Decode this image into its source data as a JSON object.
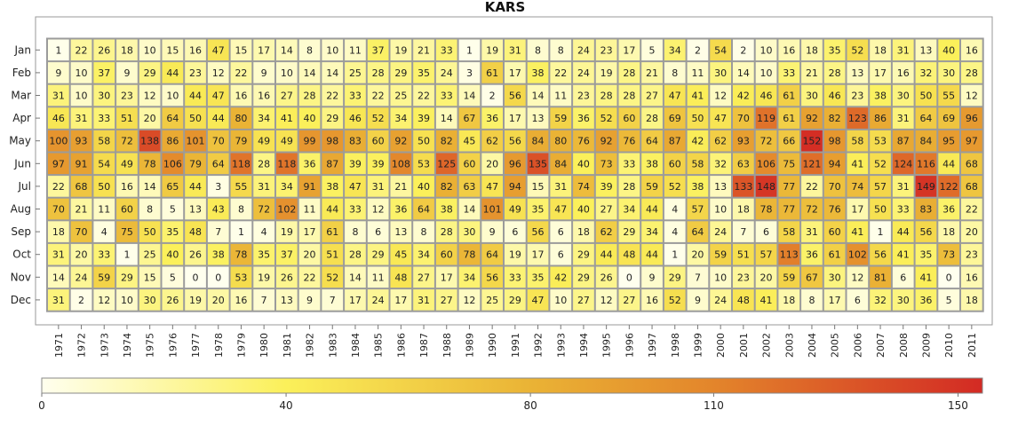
{
  "chart_data": {
    "type": "heatmap",
    "title": "KARS",
    "rows": [
      "Jan",
      "Feb",
      "Mar",
      "Apr",
      "May",
      "Jun",
      "Jul",
      "Aug",
      "Sep",
      "Oct",
      "Nov",
      "Dec"
    ],
    "columns": [
      "1971",
      "1972",
      "1973",
      "1974",
      "1975",
      "1976",
      "1977",
      "1978",
      "1979",
      "1980",
      "1981",
      "1982",
      "1983",
      "1984",
      "1985",
      "1986",
      "1987",
      "1988",
      "1989",
      "1990",
      "1991",
      "1992",
      "1993",
      "1994",
      "1995",
      "1996",
      "1997",
      "1998",
      "1999",
      "2000",
      "2001",
      "2002",
      "2003",
      "2004",
      "2005",
      "2006",
      "2007",
      "2008",
      "2009",
      "2010",
      "2011"
    ],
    "values": [
      [
        1,
        22,
        26,
        18,
        10,
        15,
        16,
        47,
        15,
        17,
        14,
        8,
        10,
        11,
        37,
        19,
        21,
        33,
        1,
        19,
        31,
        8,
        8,
        24,
        23,
        17,
        5,
        34,
        2,
        54,
        2,
        10,
        16,
        18,
        35,
        52,
        18,
        31,
        13,
        40,
        16
      ],
      [
        9,
        10,
        37,
        9,
        29,
        44,
        23,
        12,
        22,
        9,
        10,
        14,
        14,
        25,
        28,
        29,
        35,
        24,
        3,
        61,
        17,
        38,
        22,
        24,
        19,
        28,
        21,
        8,
        11,
        30,
        14,
        10,
        33,
        21,
        28,
        13,
        17,
        16,
        32,
        30,
        28
      ],
      [
        31,
        10,
        30,
        23,
        12,
        10,
        44,
        47,
        16,
        16,
        27,
        28,
        22,
        33,
        22,
        25,
        22,
        33,
        14,
        2,
        56,
        14,
        11,
        23,
        28,
        28,
        27,
        47,
        41,
        12,
        42,
        46,
        61,
        30,
        46,
        23,
        38,
        30,
        50,
        55,
        12
      ],
      [
        46,
        31,
        33,
        51,
        20,
        64,
        50,
        44,
        80,
        34,
        41,
        40,
        29,
        46,
        52,
        34,
        39,
        14,
        67,
        36,
        17,
        13,
        59,
        36,
        52,
        60,
        28,
        69,
        50,
        47,
        70,
        119,
        61,
        92,
        82,
        123,
        86,
        31,
        64,
        69,
        96
      ],
      [
        100,
        93,
        58,
        72,
        138,
        86,
        101,
        70,
        79,
        49,
        49,
        99,
        98,
        83,
        60,
        92,
        50,
        82,
        45,
        62,
        56,
        84,
        80,
        76,
        92,
        76,
        64,
        87,
        42,
        62,
        93,
        72,
        66,
        152,
        98,
        58,
        53,
        87,
        84,
        95,
        97
      ],
      [
        97,
        91,
        54,
        49,
        78,
        106,
        79,
        64,
        118,
        28,
        118,
        36,
        87,
        39,
        39,
        108,
        53,
        125,
        60,
        20,
        96,
        135,
        84,
        40,
        73,
        33,
        38,
        60,
        58,
        32,
        63,
        106,
        75,
        121,
        94,
        41,
        52,
        124,
        116,
        44,
        68
      ],
      [
        22,
        68,
        50,
        16,
        14,
        65,
        44,
        3,
        55,
        31,
        34,
        91,
        38,
        47,
        31,
        21,
        40,
        82,
        63,
        47,
        94,
        15,
        31,
        74,
        39,
        28,
        59,
        52,
        38,
        13,
        133,
        148,
        77,
        22,
        70,
        74,
        57,
        31,
        149,
        122,
        68
      ],
      [
        70,
        21,
        11,
        60,
        8,
        5,
        13,
        43,
        8,
        72,
        102,
        11,
        44,
        33,
        12,
        36,
        64,
        38,
        14,
        101,
        49,
        35,
        47,
        40,
        27,
        34,
        44,
        4,
        57,
        10,
        18,
        78,
        77,
        72,
        76,
        17,
        50,
        33,
        83,
        36,
        22
      ],
      [
        18,
        70,
        4,
        75,
        50,
        35,
        48,
        7,
        1,
        4,
        19,
        17,
        61,
        8,
        6,
        13,
        8,
        28,
        30,
        9,
        6,
        56,
        6,
        18,
        62,
        29,
        34,
        4,
        64,
        24,
        7,
        6,
        58,
        31,
        60,
        41,
        1,
        44,
        56,
        18,
        20
      ],
      [
        31,
        20,
        33,
        1,
        25,
        40,
        26,
        38,
        78,
        35,
        37,
        20,
        51,
        28,
        29,
        45,
        34,
        60,
        78,
        64,
        19,
        17,
        6,
        29,
        44,
        48,
        44,
        1,
        20,
        59,
        51,
        57,
        113,
        36,
        61,
        102,
        56,
        41,
        35,
        73,
        23
      ],
      [
        14,
        24,
        59,
        29,
        15,
        5,
        0,
        0,
        53,
        19,
        26,
        22,
        52,
        14,
        11,
        48,
        27,
        17,
        34,
        56,
        33,
        35,
        42,
        29,
        26,
        0,
        9,
        29,
        7,
        10,
        23,
        20,
        59,
        67,
        30,
        12,
        81,
        6,
        41,
        0,
        16
      ],
      [
        31,
        2,
        12,
        10,
        30,
        26,
        19,
        20,
        16,
        7,
        13,
        9,
        7,
        17,
        24,
        17,
        31,
        27,
        12,
        25,
        29,
        47,
        10,
        27,
        12,
        27,
        16,
        52,
        9,
        24,
        48,
        41,
        18,
        8,
        17,
        6,
        32,
        30,
        36,
        5,
        18
      ]
    ],
    "color_scale": {
      "ticks": [
        0,
        40,
        80,
        110,
        150
      ],
      "stops": [
        "#ffffee",
        "#fbf05a",
        "#eab335",
        "#e3852b",
        "#d32a24"
      ],
      "range": [
        0,
        154
      ]
    }
  }
}
